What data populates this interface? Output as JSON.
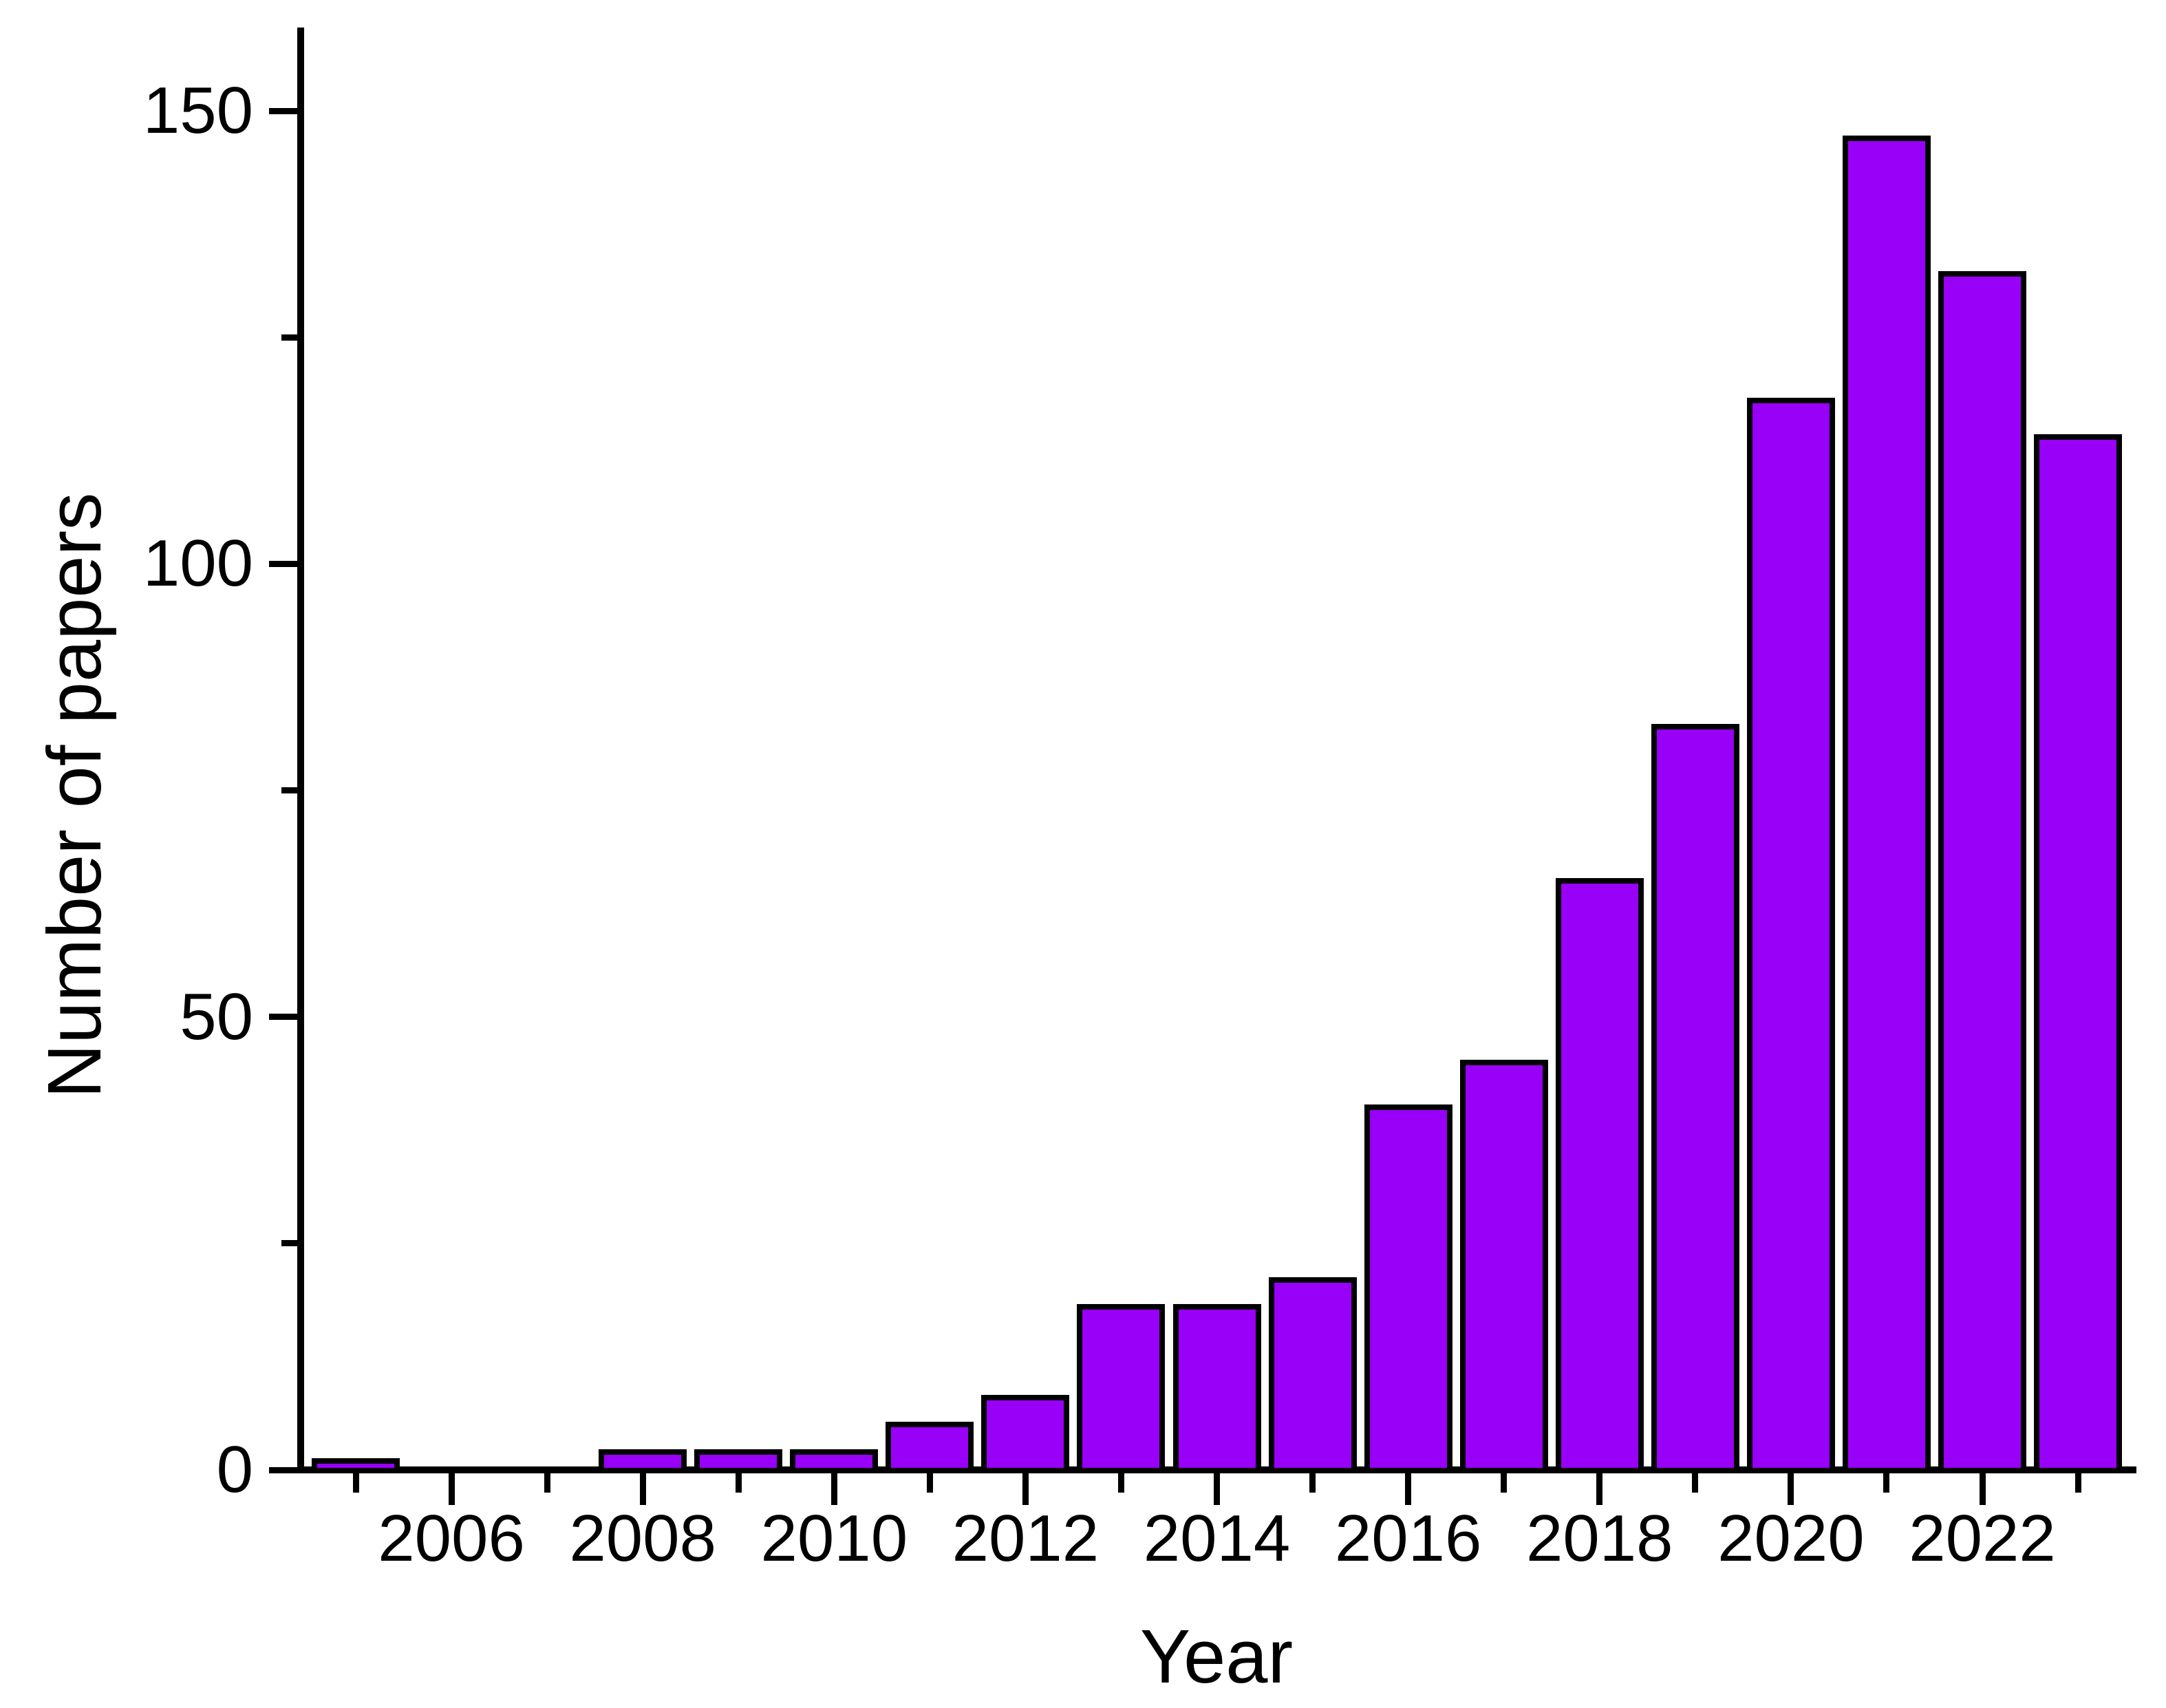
{
  "chart_data": {
    "type": "bar",
    "title": "",
    "xlabel": "Year",
    "ylabel": "Number of papers",
    "categories": [
      2005,
      2006,
      2007,
      2008,
      2009,
      2010,
      2011,
      2012,
      2013,
      2014,
      2015,
      2016,
      2017,
      2018,
      2019,
      2020,
      2021,
      2022,
      2023
    ],
    "values": [
      1,
      0,
      0,
      2,
      2,
      2,
      5,
      8,
      18,
      18,
      21,
      40,
      45,
      65,
      82,
      118,
      147,
      132,
      114
    ],
    "ylim": [
      0,
      150
    ],
    "y_major_ticks": [
      0,
      50,
      100,
      150
    ],
    "y_major_tick_labels": [
      "0",
      "50",
      "100",
      "150"
    ],
    "y_minor_ticks": [
      25,
      75,
      125
    ],
    "x_major_tick_years": [
      2006,
      2008,
      2010,
      2012,
      2014,
      2016,
      2018,
      2020,
      2022
    ],
    "x_major_tick_labels": [
      "2006",
      "2008",
      "2010",
      "2012",
      "2014",
      "2016",
      "2018",
      "2020",
      "2022"
    ],
    "x_minor_tick_years": [
      2005,
      2007,
      2009,
      2011,
      2013,
      2015,
      2017,
      2019,
      2021,
      2023
    ],
    "grid": "off",
    "legend": "none",
    "bar_fill_color": "#9800F8",
    "bar_border_color": "#000000",
    "axis_color": "#000000"
  }
}
